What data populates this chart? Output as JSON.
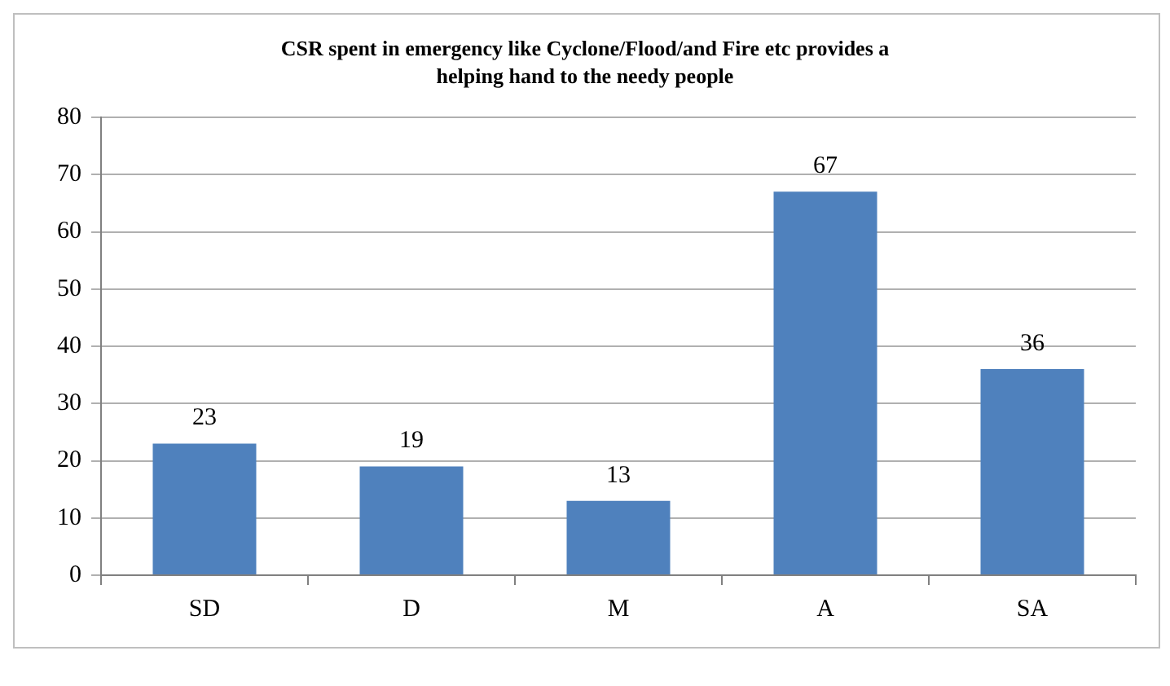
{
  "chart_data": {
    "type": "bar",
    "title": "CSR spent in emergency like Cyclone/Flood/and Fire etc provides a helping hand to the needy people",
    "categories": [
      "SD",
      "D",
      "M",
      "A",
      "SA"
    ],
    "values": [
      23,
      19,
      13,
      67,
      36
    ],
    "color": "#4f81bd",
    "ylim": [
      0,
      80
    ],
    "yticks": [
      0,
      10,
      20,
      30,
      40,
      50,
      60,
      70,
      80
    ],
    "grid": "y",
    "data_labels": true,
    "legend": false
  }
}
